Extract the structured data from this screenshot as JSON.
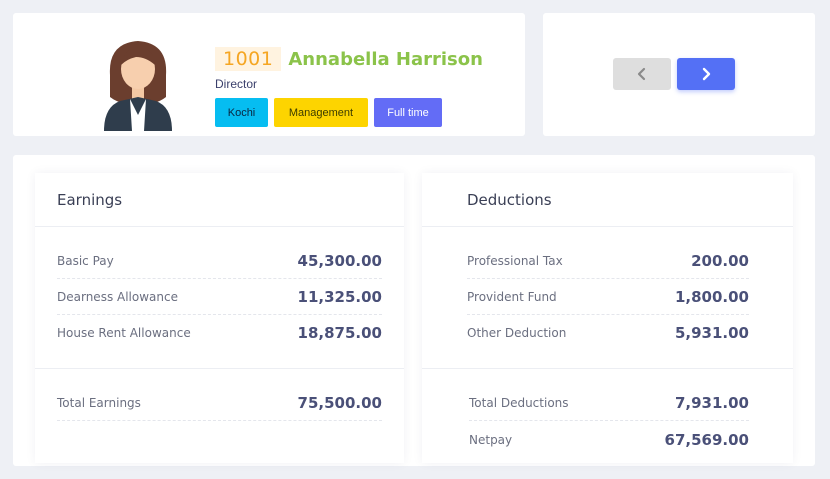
{
  "employee": {
    "id": "1001",
    "name": "Annabella Harrison",
    "designation": "Director",
    "tags": {
      "location": "Kochi",
      "department": "Management",
      "employment_type": "Full time"
    }
  },
  "navigation": {
    "prev_icon": "chevron-left-icon",
    "next_icon": "chevron-right-icon"
  },
  "earnings": {
    "title": "Earnings",
    "items": [
      {
        "label": "Basic Pay",
        "value": "45,300.00"
      },
      {
        "label": "Dearness Allowance",
        "value": "11,325.00"
      },
      {
        "label": "House Rent Allowance",
        "value": "18,875.00"
      }
    ],
    "total": {
      "label": "Total Earnings",
      "value": "75,500.00"
    }
  },
  "deductions": {
    "title": "Deductions",
    "items": [
      {
        "label": "Professional Tax",
        "value": "200.00"
      },
      {
        "label": "Provident Fund",
        "value": "1,800.00"
      },
      {
        "label": "Other Deduction",
        "value": "5,931.00"
      }
    ],
    "total": {
      "label": "Total Deductions",
      "value": "7,931.00"
    },
    "netpay": {
      "label": "Netpay",
      "value": "67,569.00"
    }
  },
  "colors": {
    "name": "#8bc34a",
    "id": "#f5a623",
    "tag_location": "#06bdf1",
    "tag_department": "#fdd400",
    "tag_type": "#636cf6",
    "next_button": "#5470f5"
  }
}
